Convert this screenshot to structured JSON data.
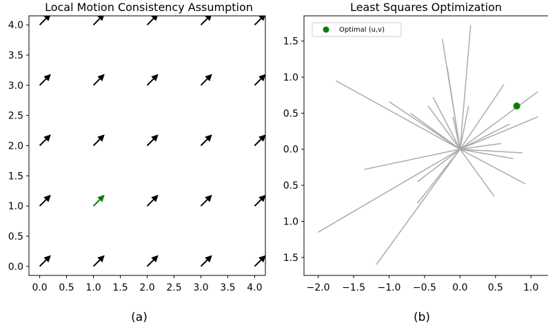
{
  "chart_data": [
    {
      "type": "quiver",
      "title": "Local Motion Consistency Assumption",
      "caption": "(a)",
      "xlabel": "",
      "ylabel": "",
      "xlim": [
        -0.2,
        4.2
      ],
      "ylim": [
        -0.15,
        4.15
      ],
      "x_ticks": [
        0.0,
        0.5,
        1.0,
        1.5,
        2.0,
        2.5,
        3.0,
        3.5,
        4.0
      ],
      "x_tick_labels": [
        "0.0",
        "0.5",
        "1.0",
        "1.5",
        "2.0",
        "2.5",
        "3.0",
        "3.5",
        "4.0"
      ],
      "y_ticks": [
        0.0,
        0.5,
        1.0,
        1.5,
        2.0,
        2.5,
        3.0,
        3.5,
        4.0
      ],
      "y_tick_labels": [
        "0.0",
        "0.5",
        "1.0",
        "1.5",
        "2.0",
        "2.5",
        "3.0",
        "3.5",
        "4.0"
      ],
      "grid_x": [
        0,
        1,
        2,
        3,
        4
      ],
      "grid_y": [
        0,
        1,
        2,
        3,
        4
      ],
      "vector": {
        "u": 0.2,
        "v": 0.2
      },
      "highlight": {
        "x": 1,
        "y": 1
      },
      "arrow_color": "#000000",
      "highlight_color": "#008000"
    },
    {
      "type": "line",
      "title": "Least Squares Optimization",
      "caption": "(b)",
      "xlabel": "",
      "ylabel": "",
      "xlim": [
        -2.2,
        1.25
      ],
      "ylim": [
        -1.75,
        1.85
      ],
      "x_ticks": [
        -2.0,
        -1.5,
        -1.0,
        -0.5,
        0.0,
        0.5,
        1.0
      ],
      "x_tick_labels": [
        "−2.0",
        "−1.5",
        "−1.0",
        "−0.5",
        "0.0",
        "0.5",
        "1.0"
      ],
      "y_ticks": [
        1.5,
        1.0,
        0.5,
        0.0,
        -0.5,
        -1.0,
        -1.5
      ],
      "y_tick_labels": [
        "1.5",
        "1.0",
        "0.5",
        "0.0",
        "0.5",
        "1.0",
        "1.5"
      ],
      "line_color": "#aaaaaa",
      "constraint_lines": [
        [
          -1.75,
          0.95,
          0.0,
          0.0
        ],
        [
          -1.0,
          0.66,
          0.0,
          0.0
        ],
        [
          -0.7,
          0.5,
          0.0,
          0.0
        ],
        [
          -0.45,
          0.6,
          0.0,
          0.0
        ],
        [
          -0.38,
          0.72,
          0.0,
          0.0
        ],
        [
          -0.25,
          1.53,
          0.0,
          0.0
        ],
        [
          -0.18,
          1.13,
          0.0,
          0.0
        ],
        [
          -0.1,
          0.45,
          0.0,
          0.0
        ],
        [
          0.15,
          1.72,
          0.0,
          0.0
        ],
        [
          0.12,
          0.6,
          0.0,
          0.0
        ],
        [
          0.62,
          0.9,
          0.0,
          0.0
        ],
        [
          0.7,
          0.35,
          0.0,
          0.0
        ],
        [
          1.1,
          0.8,
          0.0,
          0.0
        ],
        [
          1.1,
          0.45,
          0.0,
          0.0
        ],
        [
          0.58,
          0.08,
          0.0,
          0.0
        ],
        [
          0.88,
          -0.05,
          0.0,
          0.0
        ],
        [
          0.75,
          -0.13,
          0.0,
          0.0
        ],
        [
          0.92,
          -0.48,
          0.0,
          0.0
        ],
        [
          0.48,
          -0.65,
          0.0,
          0.0
        ],
        [
          -1.35,
          -0.28,
          0.0,
          0.0
        ],
        [
          -2.0,
          -1.15,
          0.0,
          0.0
        ],
        [
          -0.6,
          -0.45,
          0.0,
          0.0
        ],
        [
          -0.6,
          -0.75,
          0.0,
          0.0
        ],
        [
          -1.18,
          -1.6,
          0.0,
          0.0
        ]
      ],
      "optimal_point": {
        "u": 0.8,
        "v": 0.6,
        "label": "Optimal (u,v)",
        "color": "#008000"
      },
      "legend": {
        "entries": [
          "Optimal (u,v)"
        ],
        "placement": "top-left"
      }
    }
  ]
}
